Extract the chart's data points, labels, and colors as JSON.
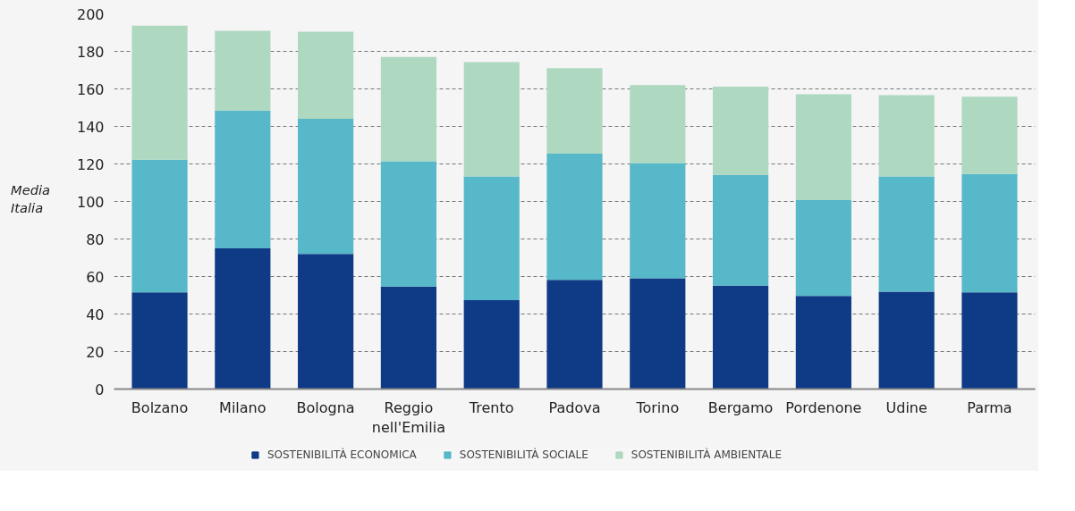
{
  "chart_data": {
    "type": "bar",
    "stacked": true,
    "categories": [
      "Bolzano",
      "Milano",
      "Bologna",
      "Reggio nell'Emilia",
      "Trento",
      "Padova",
      "Torino",
      "Bergamo",
      "Pordenone",
      "Udine",
      "Parma"
    ],
    "series": [
      {
        "name": "SOSTENIBILITÀ ECONOMICA",
        "color": "#0f3a85",
        "values": [
          51.5,
          75,
          72,
          54.6,
          47.4,
          58.2,
          59.1,
          55.1,
          49.7,
          51.9,
          51.5
        ]
      },
      {
        "name": "SOSTENIBILITÀ SOCIALE",
        "color": "#56b8c8",
        "values": [
          70.8,
          73.5,
          72,
          66.8,
          65.9,
          67.3,
          61.4,
          59.1,
          51,
          61.4,
          63.2
        ]
      },
      {
        "name": "SOSTENIBILITÀ AMBIENTALE",
        "color": "#aed8c0",
        "values": [
          71.4,
          42.5,
          46.5,
          55.6,
          61,
          45.6,
          41.5,
          47,
          56.4,
          43.4,
          41.1
        ]
      }
    ],
    "ylim": [
      0,
      200
    ],
    "yticks": [
      0,
      20,
      40,
      60,
      80,
      100,
      120,
      140,
      160,
      180,
      200
    ],
    "grid": "y",
    "legend": "bottom",
    "annotations": [
      "Media Italia"
    ]
  }
}
